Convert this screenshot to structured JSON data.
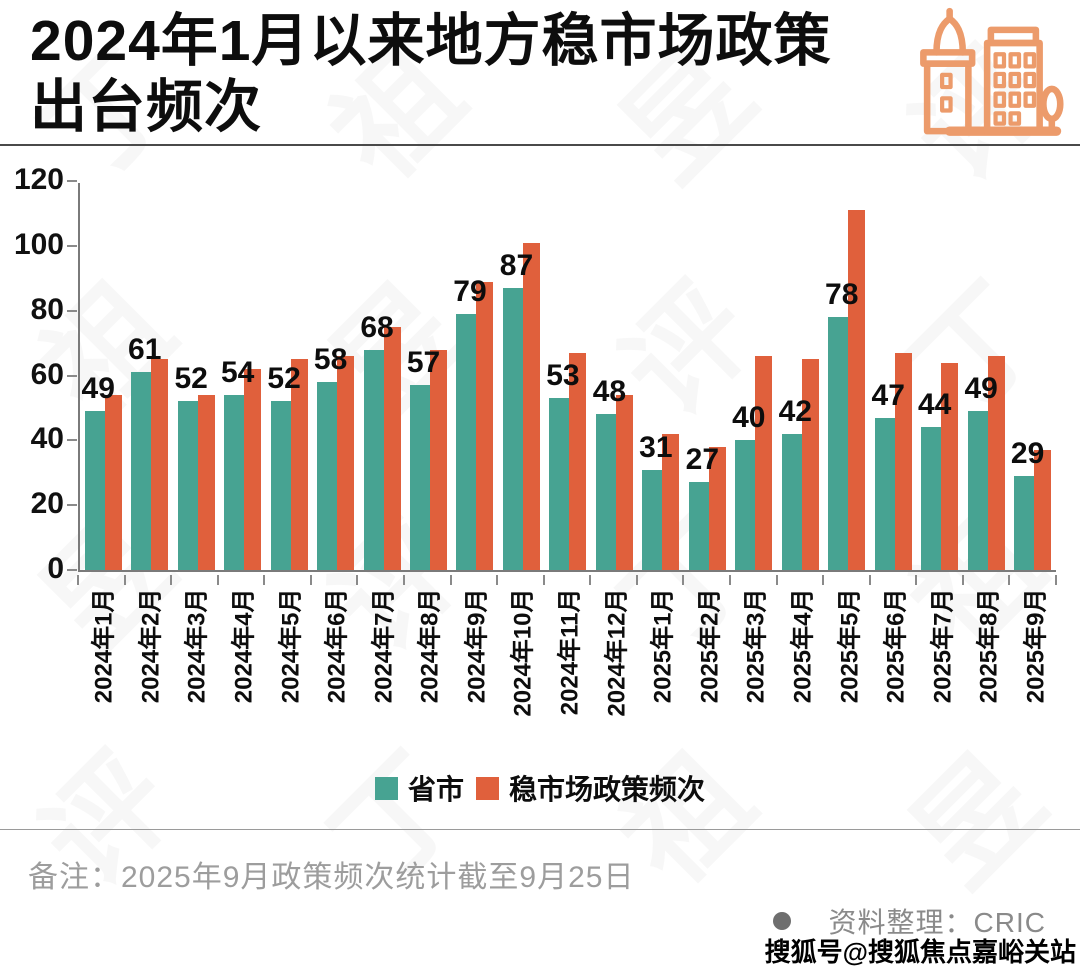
{
  "title": {
    "line1": "2024年1月以来地方稳市场政策",
    "line2": "出台频次"
  },
  "icon": {
    "name": "city-buildings-icon",
    "color": "#EC9B6B"
  },
  "chart_data": {
    "type": "bar",
    "categories": [
      "2024年1月",
      "2024年2月",
      "2024年3月",
      "2024年4月",
      "2024年5月",
      "2024年6月",
      "2024年7月",
      "2024年8月",
      "2024年9月",
      "2024年10月",
      "2024年11月",
      "2024年12月",
      "2025年1月",
      "2025年2月",
      "2025年3月",
      "2025年4月",
      "2025年5月",
      "2025年6月",
      "2025年7月",
      "2025年8月",
      "2025年9月"
    ],
    "series": [
      {
        "name": "省市",
        "color": "#47A392",
        "values": [
          49,
          61,
          52,
          54,
          52,
          58,
          68,
          57,
          79,
          87,
          53,
          48,
          31,
          27,
          40,
          42,
          78,
          47,
          44,
          49,
          29
        ]
      },
      {
        "name": "稳市场政策频次",
        "color": "#E0603C",
        "values": [
          54,
          65,
          54,
          62,
          65,
          66,
          75,
          68,
          89,
          101,
          67,
          54,
          42,
          38,
          66,
          65,
          111,
          67,
          64,
          66,
          37
        ]
      }
    ],
    "bar_labels_series": "省市",
    "xlabel": "",
    "ylabel": "",
    "ylim": [
      0,
      120
    ],
    "yticks": [
      0,
      20,
      40,
      60,
      80,
      100,
      120
    ],
    "grid": false,
    "legend_position": "bottom"
  },
  "footer": {
    "note": "备注：2025年9月政策频次统计截至9月25日",
    "source": "资料整理：CRIC",
    "overlay": "搜狐号@搜狐焦点嘉峪关站"
  },
  "watermark": {
    "chars": [
      "丁",
      "祖",
      "昱",
      "评"
    ]
  }
}
